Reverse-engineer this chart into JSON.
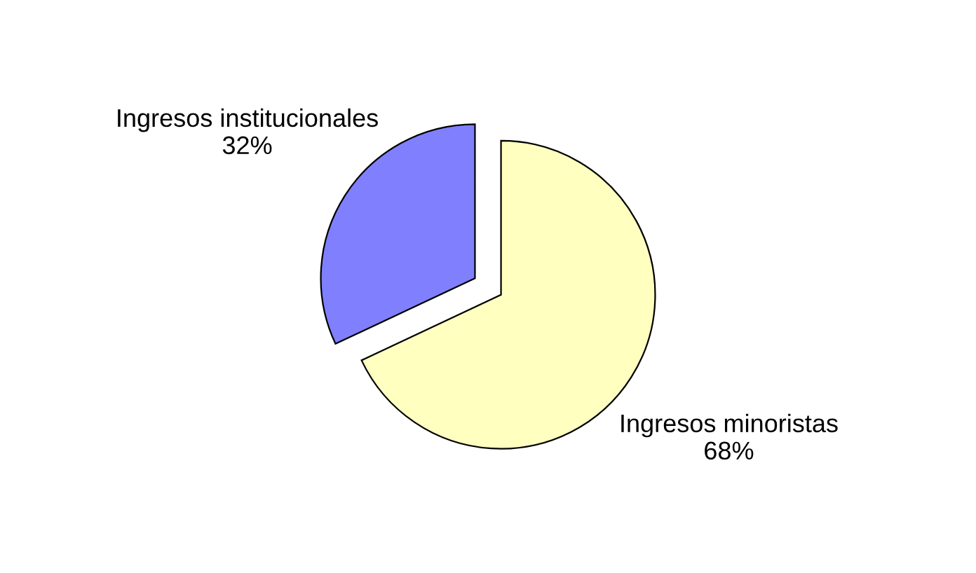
{
  "chart_data": {
    "type": "pie",
    "categories": [
      "Ingresos institucionales",
      "Ingresos minoristas"
    ],
    "values": [
      32,
      68
    ],
    "colors": [
      "#8080ff",
      "#ffffc0"
    ],
    "value_labels": [
      "32%",
      "68%"
    ]
  }
}
